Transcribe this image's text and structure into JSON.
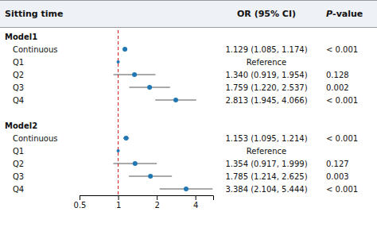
{
  "chart_data": {
    "type": "forest",
    "columns": [
      "Sitting time",
      "OR (95% CI)",
      "P-value"
    ],
    "log": "x",
    "xlim": [
      0.5,
      5.5
    ],
    "xticks": [
      0.5,
      1,
      2,
      4
    ],
    "ref_line": 1.0,
    "groups": [
      {
        "name": "Model1",
        "categories": [
          "Continuous",
          "Q1",
          "Q2",
          "Q3",
          "Q4"
        ],
        "values": [
          1.129,
          1.0,
          1.34,
          1.759,
          2.813
        ],
        "ci_low": [
          1.085,
          null,
          0.919,
          1.22,
          1.945
        ],
        "ci_high": [
          1.174,
          null,
          1.954,
          2.537,
          4.066
        ],
        "value_labels": [
          "1.129 (1.085, 1.174)",
          "Reference",
          "1.340 (0.919, 1.954)",
          "1.759 (1.220, 2.537)",
          "2.813 (1.945, 4.066)"
        ],
        "p_values": [
          "< 0.001",
          null,
          "0.128",
          "0.002",
          "< 0.001"
        ]
      },
      {
        "name": "Model2",
        "categories": [
          "Continuous",
          "Q1",
          "Q2",
          "Q3",
          "Q4"
        ],
        "values": [
          1.153,
          1.0,
          1.354,
          1.785,
          3.384
        ],
        "ci_low": [
          1.095,
          null,
          0.917,
          1.214,
          2.104
        ],
        "ci_high": [
          1.214,
          null,
          1.999,
          2.625,
          5.444
        ],
        "value_labels": [
          "1.153 (1.095, 1.214)",
          "Reference",
          "1.354 (0.917, 1.999)",
          "1.785 (1.214, 2.625)",
          "3.384 (2.104, 5.444)"
        ],
        "p_values": [
          "< 0.001",
          null,
          "0.127",
          "0.003",
          "< 0.001"
        ]
      }
    ]
  }
}
